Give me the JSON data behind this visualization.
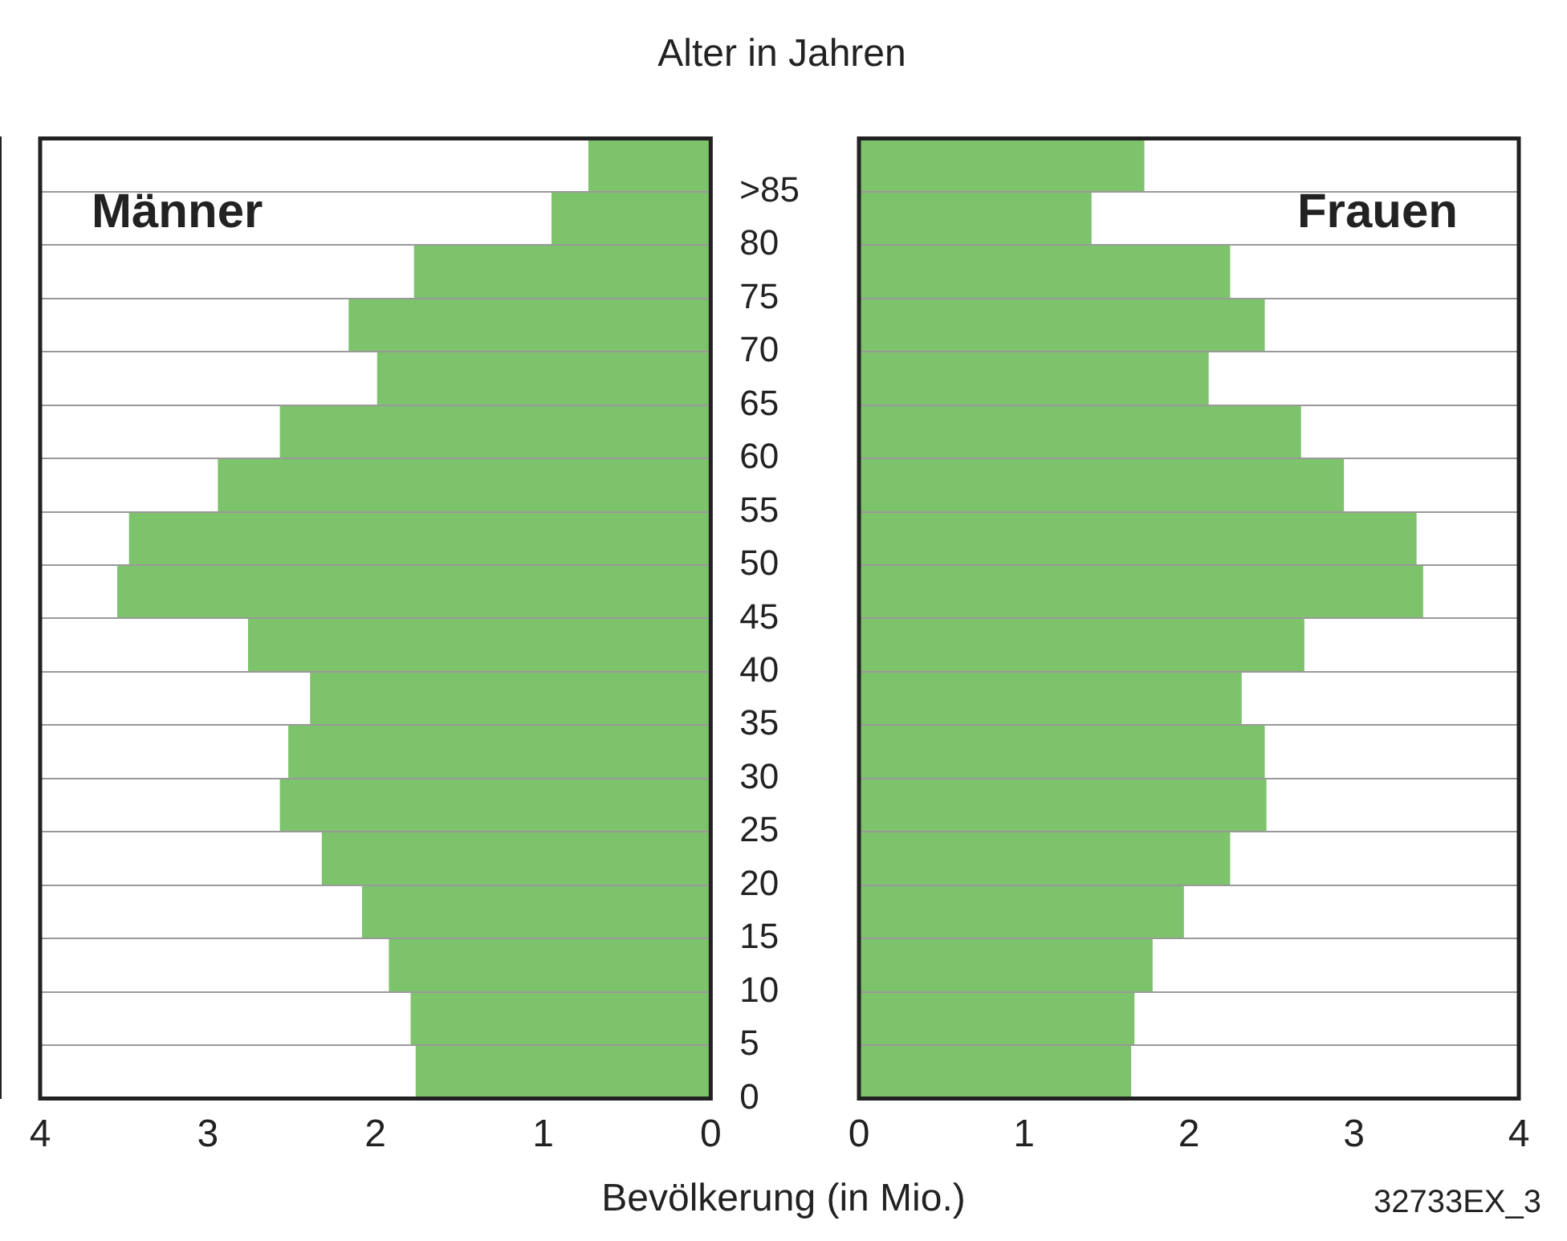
{
  "chart_data": [
    {
      "type": "histogram",
      "orientation": "horizontal",
      "ylabel": "Alter in Jahren",
      "xlabel": "Bevölkerung (in Mio.)",
      "bins": [
        0,
        5,
        10,
        15,
        20,
        25,
        30,
        35,
        40,
        45,
        50,
        55,
        60,
        65,
        70,
        75,
        80,
        85,
        90
      ],
      "series": [
        {
          "name": "Männer",
          "color": "#7dc36b",
          "values": [
            1.76,
            1.79,
            1.92,
            2.08,
            2.32,
            2.57,
            2.52,
            2.39,
            2.76,
            3.54,
            3.47,
            2.94,
            2.57,
            1.99,
            2.16,
            1.77,
            0.95,
            0.73
          ]
        }
      ],
      "xlim": [
        4,
        0
      ],
      "xticks": [
        4,
        3,
        2,
        1,
        0
      ],
      "ylim": [
        0,
        90
      ],
      "yticks": [
        0,
        5,
        10,
        15,
        20,
        25,
        30,
        35,
        40,
        45,
        50,
        55,
        60,
        65,
        70,
        75,
        80,
        {
          "value": 85,
          "label": ">85"
        }
      ],
      "grid": "y"
    },
    {
      "type": "histogram",
      "orientation": "horizontal",
      "bins": [
        0,
        5,
        10,
        15,
        20,
        25,
        30,
        35,
        40,
        45,
        50,
        55,
        60,
        65,
        70,
        75,
        80,
        85,
        90
      ],
      "series": [
        {
          "name": "Frauen",
          "color": "#7dc36b",
          "values": [
            1.65,
            1.67,
            1.78,
            1.97,
            2.25,
            2.47,
            2.46,
            2.32,
            2.7,
            3.42,
            3.38,
            2.94,
            2.68,
            2.12,
            2.46,
            2.25,
            1.41,
            1.73
          ]
        }
      ],
      "xlim": [
        0,
        4
      ],
      "xticks": [
        0,
        1,
        2,
        3,
        4
      ],
      "ylim": [
        0,
        90
      ],
      "yticks": [
        0,
        5,
        10,
        15,
        20,
        25,
        30,
        35,
        40,
        45,
        50,
        55,
        60,
        65,
        70,
        75,
        80,
        85
      ],
      "grid": "y",
      "tick_labels": "x",
      "annotations": [
        "32733EX_3"
      ]
    }
  ]
}
